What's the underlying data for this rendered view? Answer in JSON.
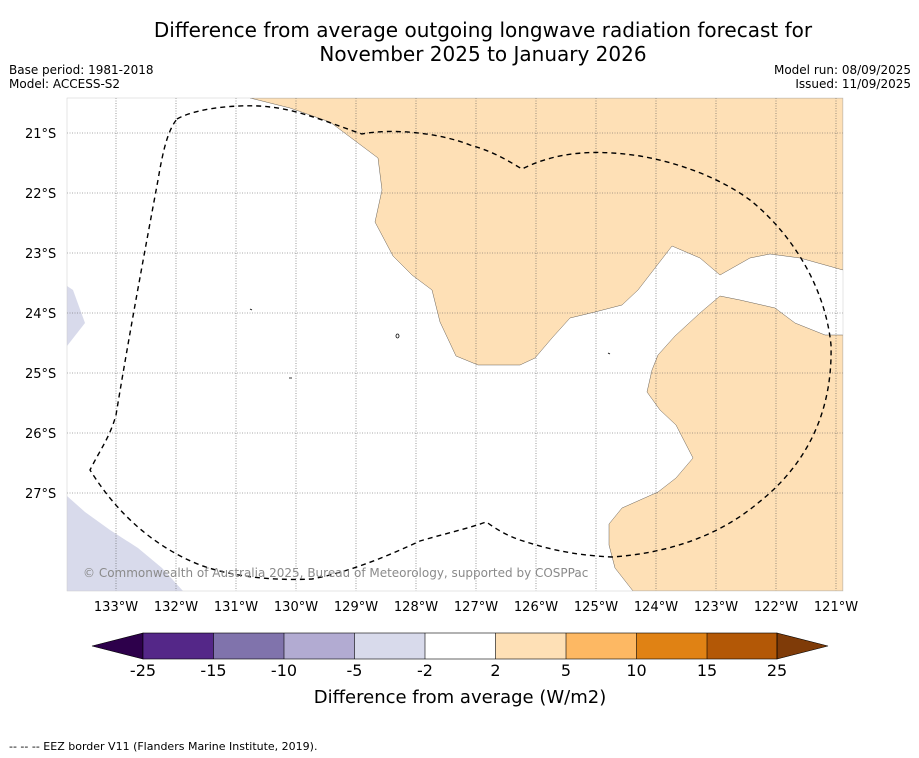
{
  "title_line1": "Difference from average outgoing longwave radiation forecast for",
  "title_line2": "November 2025 to January 2026",
  "base_period": "Base period: 1981-2018",
  "model": "Model: ACCESS-S2",
  "model_run": "Model run: 08/09/2025",
  "issued": "Issued: 11/09/2025",
  "lat_labels": [
    "21°S",
    "22°S",
    "23°S",
    "24°S",
    "25°S",
    "26°S",
    "27°S"
  ],
  "lon_labels": [
    "133°W",
    "132°W",
    "131°W",
    "130°W",
    "129°W",
    "128°W",
    "127°W",
    "126°W",
    "125°W",
    "124°W",
    "123°W",
    "122°W",
    "121°W"
  ],
  "copyright": "© Commonwealth of Australia 2025, Bureau of Meteorology, supported by COSPPac",
  "colorbar": {
    "title": "Difference from average (W/m2)",
    "tick_labels": [
      "-25",
      "-15",
      "-10",
      "-5",
      "-2",
      "2",
      "5",
      "10",
      "15",
      "25"
    ],
    "colors": [
      "#2d004b",
      "#542788",
      "#8073ac",
      "#b2abd2",
      "#d8daeb",
      "#ffffff",
      "#fee0b6",
      "#fdb863",
      "#e08214",
      "#b35806",
      "#7f3b08"
    ]
  },
  "footer": "-- -- -- EEZ border V11 (Flanders Marine Institute, 2019).",
  "colors": {
    "orange_region": "#fee0b6",
    "purple_region": "#d8daeb",
    "grid": "#555555"
  }
}
